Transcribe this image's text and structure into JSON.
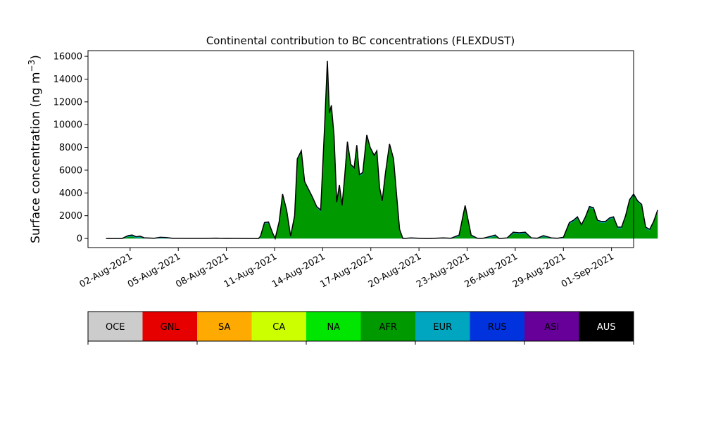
{
  "chart_data": {
    "type": "area",
    "title": "Continental contribution to BC concentrations (FLEXDUST)",
    "ylabel_main": "Surface concentration (ng m",
    "ylabel_exp": "−3",
    "ylabel_close": ")",
    "xlabel": "",
    "x_start_date": "2021-07-31",
    "x_end_date": "2021-09-01",
    "xlim_dates": [
      "2021-07-30T09:00",
      "2021-09-02T09:00"
    ],
    "ylim": [
      -800,
      16500
    ],
    "yticks": [
      0,
      2000,
      4000,
      6000,
      8000,
      10000,
      12000,
      14000,
      16000
    ],
    "xticks": [
      "02-Aug-2021",
      "05-Aug-2021",
      "08-Aug-2021",
      "11-Aug-2021",
      "14-Aug-2021",
      "17-Aug-2021",
      "20-Aug-2021",
      "23-Aug-2021",
      "26-Aug-2021",
      "29-Aug-2021",
      "01-Sep-2021"
    ],
    "xtick_dates": [
      "2021-08-02",
      "2021-08-05",
      "2021-08-08",
      "2021-08-11",
      "2021-08-14",
      "2021-08-17",
      "2021-08-20",
      "2021-08-23",
      "2021-08-26",
      "2021-08-29",
      "2021-09-01"
    ],
    "grid": false,
    "legend_position": "bottom colorbar",
    "colorbar": [
      {
        "label": "OCE",
        "color": "#cccccc",
        "text_color": "#000000"
      },
      {
        "label": "GNL",
        "color": "#e60000",
        "text_color": "#000000"
      },
      {
        "label": "SA",
        "color": "#ffaa00",
        "text_color": "#000000"
      },
      {
        "label": "CA",
        "color": "#ccff00",
        "text_color": "#000000"
      },
      {
        "label": "NA",
        "color": "#00e600",
        "text_color": "#000000"
      },
      {
        "label": "AFR",
        "color": "#009900",
        "text_color": "#000000"
      },
      {
        "label": "EUR",
        "color": "#00a6bf",
        "text_color": "#000000"
      },
      {
        "label": "RUS",
        "color": "#0033dd",
        "text_color": "#000000"
      },
      {
        "label": "ASI",
        "color": "#660099",
        "text_color": "#000000"
      },
      {
        "label": "AUS",
        "color": "#000000",
        "text_color": "#ffffff"
      }
    ],
    "total": [
      [
        "2021-07-31T12:00",
        0
      ],
      [
        "2021-08-01T00:00",
        0
      ],
      [
        "2021-08-01T12:00",
        0
      ],
      [
        "2021-08-01T21:00",
        250
      ],
      [
        "2021-08-02T03:00",
        300
      ],
      [
        "2021-08-02T09:00",
        150
      ],
      [
        "2021-08-02T15:00",
        200
      ],
      [
        "2021-08-02T21:00",
        60
      ],
      [
        "2021-08-03T12:00",
        20
      ],
      [
        "2021-08-03T21:00",
        100
      ],
      [
        "2021-08-04T06:00",
        80
      ],
      [
        "2021-08-04T15:00",
        20
      ],
      [
        "2021-08-05T12:00",
        10
      ],
      [
        "2021-08-06T12:00",
        10
      ],
      [
        "2021-08-07T09:00",
        30
      ],
      [
        "2021-08-07T18:00",
        10
      ],
      [
        "2021-08-08T00:00",
        20
      ],
      [
        "2021-08-08T12:00",
        10
      ],
      [
        "2021-08-09T12:00",
        0
      ],
      [
        "2021-08-10T00:00",
        0
      ],
      [
        "2021-08-10T03:00",
        200
      ],
      [
        "2021-08-10T09:00",
        1400
      ],
      [
        "2021-08-10T15:00",
        1450
      ],
      [
        "2021-08-10T21:00",
        500
      ],
      [
        "2021-08-11T01:00",
        0
      ],
      [
        "2021-08-11T07:00",
        1500
      ],
      [
        "2021-08-11T12:00",
        3900
      ],
      [
        "2021-08-11T18:00",
        2500
      ],
      [
        "2021-08-12T00:00",
        200
      ],
      [
        "2021-08-12T06:00",
        2000
      ],
      [
        "2021-08-12T10:00",
        7000
      ],
      [
        "2021-08-12T16:00",
        7700
      ],
      [
        "2021-08-12T21:00",
        5000
      ],
      [
        "2021-08-13T03:00",
        4300
      ],
      [
        "2021-08-13T09:00",
        3600
      ],
      [
        "2021-08-13T15:00",
        2800
      ],
      [
        "2021-08-13T21:00",
        2500
      ],
      [
        "2021-08-14T03:00",
        10000
      ],
      [
        "2021-08-14T07:00",
        15600
      ],
      [
        "2021-08-14T10:00",
        11000
      ],
      [
        "2021-08-14T13:00",
        11700
      ],
      [
        "2021-08-14T17:00",
        9000
      ],
      [
        "2021-08-14T21:00",
        3200
      ],
      [
        "2021-08-15T01:00",
        4700
      ],
      [
        "2021-08-15T05:00",
        2900
      ],
      [
        "2021-08-15T09:00",
        5500
      ],
      [
        "2021-08-15T13:00",
        8500
      ],
      [
        "2021-08-15T18:00",
        6500
      ],
      [
        "2021-08-15T23:00",
        6200
      ],
      [
        "2021-08-16T03:00",
        8200
      ],
      [
        "2021-08-16T07:00",
        5600
      ],
      [
        "2021-08-16T12:00",
        5800
      ],
      [
        "2021-08-16T18:00",
        9100
      ],
      [
        "2021-08-16T23:00",
        8000
      ],
      [
        "2021-08-17T05:00",
        7300
      ],
      [
        "2021-08-17T09:00",
        7700
      ],
      [
        "2021-08-17T13:00",
        4500
      ],
      [
        "2021-08-17T17:00",
        3300
      ],
      [
        "2021-08-17T22:00",
        5800
      ],
      [
        "2021-08-18T04:00",
        8300
      ],
      [
        "2021-08-18T10:00",
        7000
      ],
      [
        "2021-08-18T15:00",
        3500
      ],
      [
        "2021-08-18T19:00",
        800
      ],
      [
        "2021-08-19T00:00",
        0
      ],
      [
        "2021-08-19T12:00",
        50
      ],
      [
        "2021-08-20T00:00",
        20
      ],
      [
        "2021-08-20T12:00",
        0
      ],
      [
        "2021-08-21T00:00",
        20
      ],
      [
        "2021-08-21T12:00",
        50
      ],
      [
        "2021-08-22T00:00",
        20
      ],
      [
        "2021-08-22T12:00",
        300
      ],
      [
        "2021-08-22T21:00",
        2900
      ],
      [
        "2021-08-23T06:00",
        300
      ],
      [
        "2021-08-23T15:00",
        20
      ],
      [
        "2021-08-24T00:00",
        20
      ],
      [
        "2021-08-24T12:00",
        200
      ],
      [
        "2021-08-24T18:00",
        300
      ],
      [
        "2021-08-25T00:00",
        0
      ],
      [
        "2021-08-25T12:00",
        50
      ],
      [
        "2021-08-25T21:00",
        550
      ],
      [
        "2021-08-26T06:00",
        500
      ],
      [
        "2021-08-26T15:00",
        550
      ],
      [
        "2021-08-27T00:00",
        50
      ],
      [
        "2021-08-27T09:00",
        20
      ],
      [
        "2021-08-27T18:00",
        250
      ],
      [
        "2021-08-28T06:00",
        50
      ],
      [
        "2021-08-28T15:00",
        20
      ],
      [
        "2021-08-29T00:00",
        100
      ],
      [
        "2021-08-29T09:00",
        1400
      ],
      [
        "2021-08-29T15:00",
        1600
      ],
      [
        "2021-08-29T21:00",
        1900
      ],
      [
        "2021-08-30T03:00",
        1200
      ],
      [
        "2021-08-30T09:00",
        1900
      ],
      [
        "2021-08-30T15:00",
        2800
      ],
      [
        "2021-08-30T21:00",
        2700
      ],
      [
        "2021-08-31T03:00",
        1600
      ],
      [
        "2021-08-31T09:00",
        1500
      ],
      [
        "2021-08-31T15:00",
        1500
      ],
      [
        "2021-08-31T21:00",
        1800
      ],
      [
        "2021-09-01T03:00",
        1900
      ],
      [
        "2021-09-01T09:00",
        1000
      ],
      [
        "2021-09-01T15:00",
        1000
      ],
      [
        "2021-09-01T21:00",
        2000
      ],
      [
        "2021-09-02T03:00",
        3400
      ],
      [
        "2021-09-02T09:00",
        3900
      ],
      [
        "2021-09-02T15:00",
        3300
      ],
      [
        "2021-09-02T21:00",
        3000
      ],
      [
        "2021-09-03T03:00",
        1000
      ],
      [
        "2021-09-03T09:00",
        800
      ],
      [
        "2021-09-03T15:00",
        1500
      ],
      [
        "2021-09-03T21:00",
        2500
      ]
    ]
  }
}
